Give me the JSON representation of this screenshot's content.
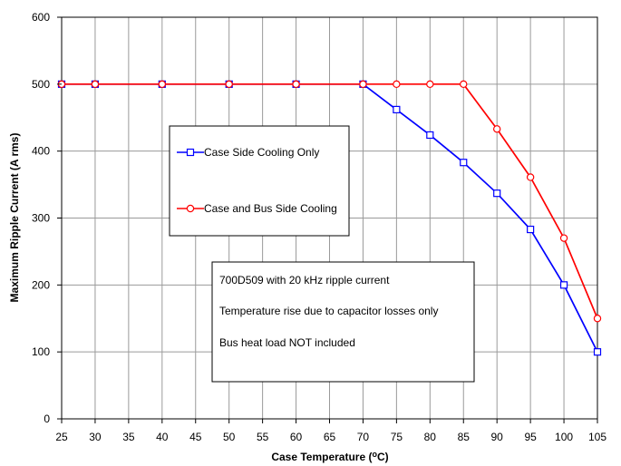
{
  "chart_data": {
    "type": "line",
    "title": "",
    "xlabel": "Case Temperature (°C)",
    "xlabel_prefix": "Case Temperature (",
    "xlabel_superscript": "o",
    "xlabel_suffix": "C)",
    "ylabel": "Maximum Ripple Current (A rms)",
    "x_ticks": [
      25,
      30,
      35,
      40,
      45,
      50,
      55,
      60,
      65,
      70,
      75,
      80,
      85,
      90,
      95,
      100,
      105
    ],
    "y_ticks": [
      0,
      100,
      200,
      300,
      400,
      500,
      600
    ],
    "xlim": [
      25,
      105
    ],
    "ylim": [
      0,
      600
    ],
    "grid": true,
    "legend_placement": "upper-left inside plot",
    "series": [
      {
        "name": "Case Side Cooling Only",
        "color": "#0000ff",
        "marker": "square",
        "x": [
          25,
          30,
          40,
          50,
          60,
          70,
          75,
          80,
          85,
          90,
          95,
          100,
          105
        ],
        "y": [
          500,
          500,
          500,
          500,
          500,
          500,
          462,
          424,
          383,
          337,
          283,
          200,
          100
        ]
      },
      {
        "name": "Case and Bus Side Cooling",
        "color": "#ff0000",
        "marker": "circle",
        "x": [
          25,
          30,
          40,
          50,
          60,
          70,
          75,
          80,
          85,
          90,
          95,
          100,
          105
        ],
        "y": [
          500,
          500,
          500,
          500,
          500,
          500,
          500,
          500,
          500,
          433,
          361,
          270,
          150
        ]
      }
    ],
    "annotations": [
      "700D509 with 20 kHz ripple current",
      "Temperature rise due to capacitor losses only",
      "Bus heat load NOT included"
    ]
  }
}
